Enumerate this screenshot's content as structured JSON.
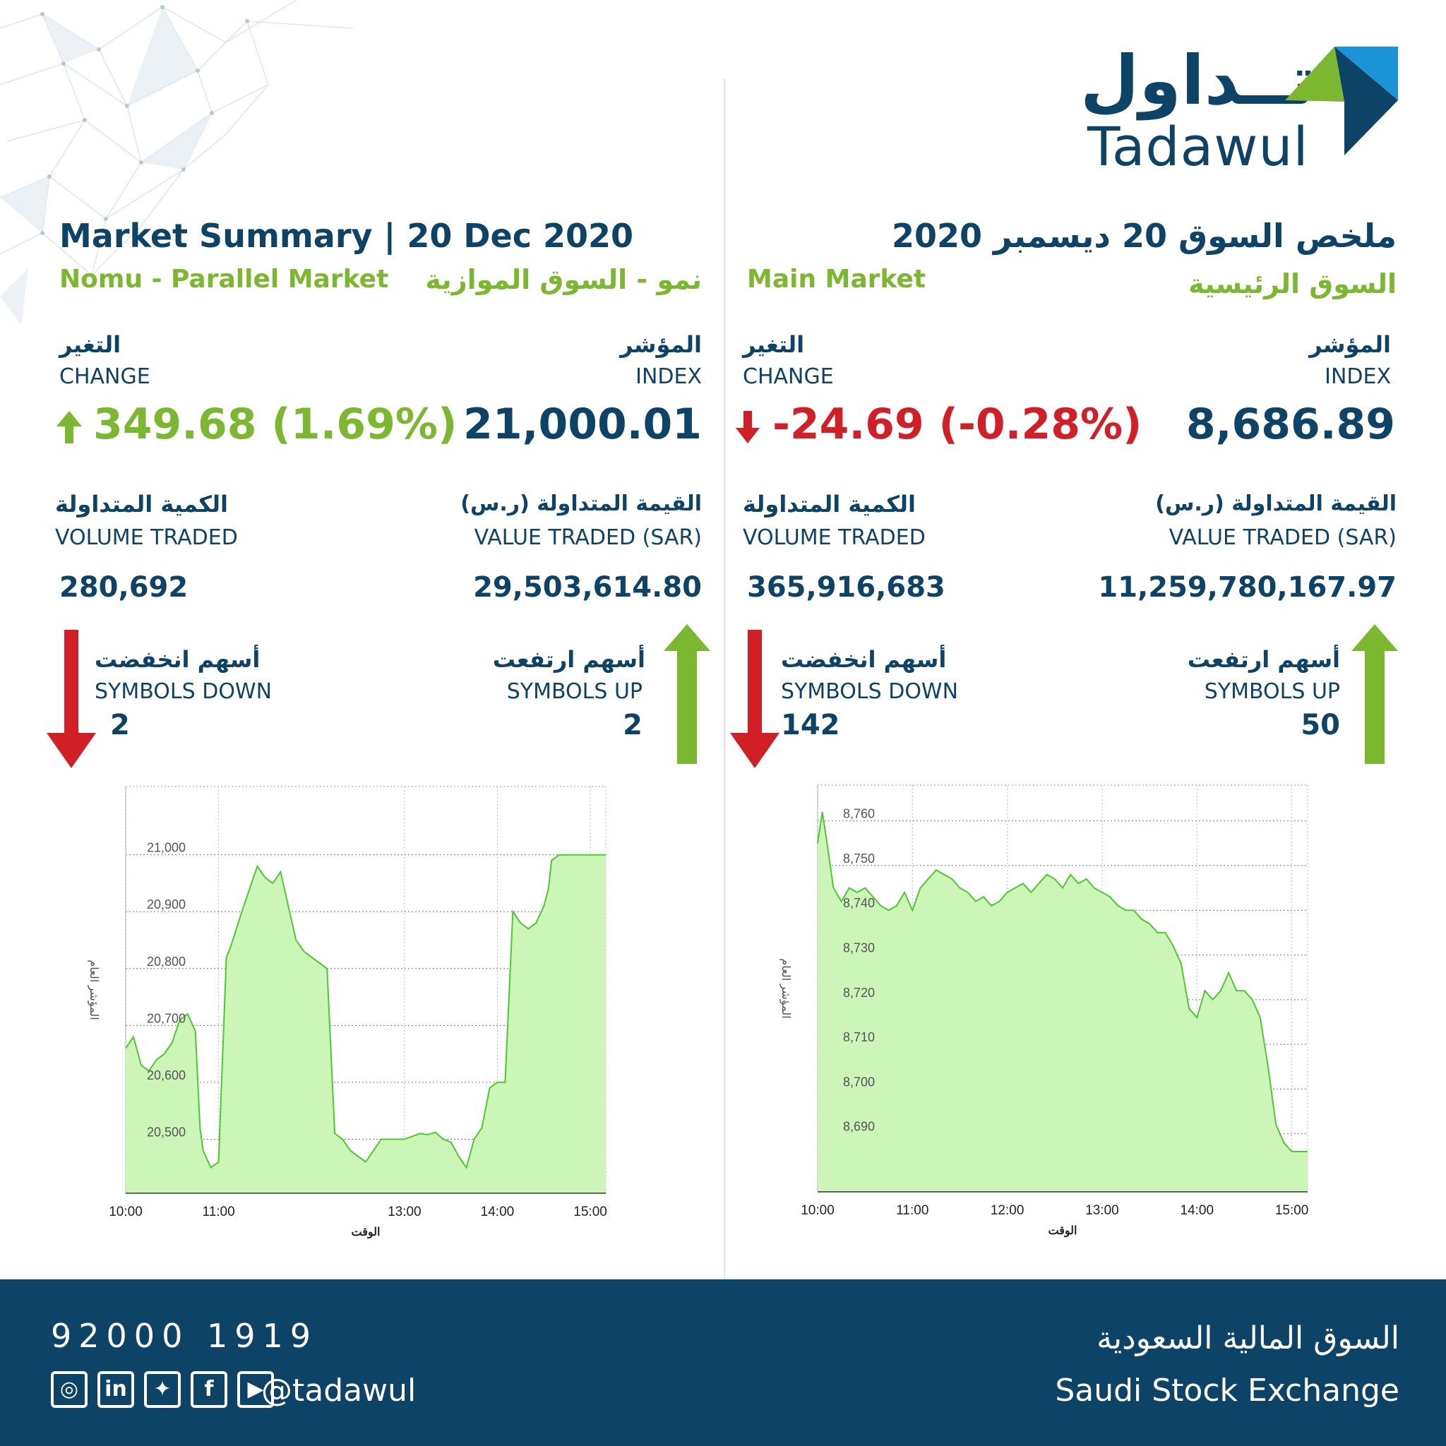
{
  "brand": {
    "arabic_name": "تــداول",
    "latin_name": "Tadawul"
  },
  "header": {
    "title_en": "Market Summary | 20 Dec 2020",
    "title_ar": "ملخص السوق 20 ديسمبر 2020"
  },
  "nomu": {
    "market_en": "Nomu - Parallel Market",
    "market_ar": "نمو - السوق الموازية",
    "index_ar": "المؤشر",
    "index_en": "INDEX",
    "index_value": "21,000.01",
    "change_ar": "التغير",
    "change_en": "CHANGE",
    "change_value": "349.68 (1.69%)",
    "value_ar": "القيمة المتداولة (ر.س)",
    "value_en": "VALUE TRADED (SAR)",
    "value_value": "29,503,614.80",
    "volume_ar": "الكمية المتداولة",
    "volume_en": "VOLUME TRADED",
    "volume_value": "280,692",
    "up_ar": "أسهم ارتفعت",
    "up_en": "SYMBOLS UP",
    "up_value": "2",
    "down_ar": "أسهم انخفضت",
    "down_en": "SYMBOLS DOWN",
    "down_value": "2"
  },
  "main": {
    "market_en": "Main Market",
    "market_ar": "السوق الرئيسية",
    "index_ar": "المؤشر",
    "index_en": "INDEX",
    "index_value": "8,686.89",
    "change_ar": "التغير",
    "change_en": "CHANGE",
    "change_value": "-24.69 (-0.28%)",
    "value_ar": "القيمة المتداولة (ر.س)",
    "value_en": "VALUE TRADED (SAR)",
    "value_value": "11,259,780,167.97",
    "volume_ar": "الكمية المتداولة",
    "volume_en": "VOLUME TRADED",
    "volume_value": "365,916,683",
    "up_ar": "أسهم ارتفعت",
    "up_en": "SYMBOLS UP",
    "up_value": "50",
    "down_ar": "أسهم انخفضت",
    "down_en": "SYMBOLS DOWN",
    "down_value": "142"
  },
  "footer": {
    "phone": "92000 1919",
    "handle": "@tadawul",
    "exchange_ar": "السوق المالية السعودية",
    "exchange_en": "Saudi Stock Exchange",
    "social_icons": [
      "instagram-icon",
      "linkedin-icon",
      "twitter-icon",
      "facebook-icon",
      "youtube-icon"
    ]
  },
  "colors": {
    "navy": "#0d4366",
    "green": "#7cb82f",
    "red": "#d21f26",
    "chart_fill": "#ccf5b8",
    "chart_line": "#4cc92e"
  },
  "chart_data": [
    {
      "type": "area",
      "name": "nomu-index-chart",
      "xlabel": "الوقت",
      "ylabel": "المؤشر العام",
      "x_ticks": [
        "10:00",
        "11:00",
        "13:00",
        "14:00",
        "15:00"
      ],
      "y_ticks": [
        20500,
        20600,
        20700,
        20800,
        20900,
        21000
      ],
      "y_tick_labels": [
        "20,500",
        "20,600",
        "20,700",
        "20,800",
        "20,900",
        "21,000"
      ],
      "ylim": [
        20405,
        21120
      ],
      "xlim": [
        "10:00",
        "15:10"
      ],
      "grid": true,
      "x": [
        "10:00",
        "10:05",
        "10:10",
        "10:15",
        "10:20",
        "10:25",
        "10:30",
        "10:35",
        "10:40",
        "10:45",
        "10:48",
        "10:50",
        "10:55",
        "11:00",
        "11:05",
        "11:08",
        "11:15",
        "11:25",
        "11:30",
        "11:35",
        "11:40",
        "11:45",
        "11:50",
        "11:55",
        "12:00",
        "12:05",
        "12:10",
        "12:15",
        "12:20",
        "12:25",
        "12:30",
        "12:35",
        "12:40",
        "12:45",
        "12:50",
        "13:00",
        "13:05",
        "13:10",
        "13:15",
        "13:20",
        "13:25",
        "13:30",
        "13:35",
        "13:40",
        "13:45",
        "13:50",
        "13:55",
        "14:00",
        "14:05",
        "14:10",
        "14:15",
        "14:20",
        "14:25",
        "14:30",
        "14:33",
        "14:35",
        "14:40",
        "14:45",
        "14:50",
        "14:55",
        "15:00",
        "15:10"
      ],
      "y": [
        20660,
        20680,
        20630,
        20620,
        20640,
        20650,
        20670,
        20710,
        20720,
        20690,
        20520,
        20480,
        20450,
        20460,
        20820,
        20840,
        20900,
        20980,
        20960,
        20950,
        20970,
        20910,
        20850,
        20830,
        20820,
        20810,
        20800,
        20510,
        20500,
        20480,
        20470,
        20460,
        20480,
        20500,
        20500,
        20500,
        20505,
        20510,
        20508,
        20512,
        20500,
        20495,
        20470,
        20450,
        20500,
        20520,
        20590,
        20600,
        20600,
        20900,
        20880,
        20870,
        20880,
        20910,
        20940,
        20990,
        21000,
        21000,
        21000,
        21000,
        21000,
        21000
      ]
    },
    {
      "type": "area",
      "name": "main-index-chart",
      "xlabel": "الوقت",
      "ylabel": "المؤشر العام",
      "x_ticks": [
        "10:00",
        "11:00",
        "12:00",
        "13:00",
        "14:00",
        "15:00"
      ],
      "y_ticks": [
        8690,
        8700,
        8710,
        8720,
        8730,
        8740,
        8750,
        8760
      ],
      "y_tick_labels": [
        "8,690",
        "8,700",
        "8,710",
        "8,720",
        "8,730",
        "8,740",
        "8,750",
        "8,760"
      ],
      "ylim": [
        8677,
        8768
      ],
      "xlim": [
        "10:00",
        "15:10"
      ],
      "grid": true,
      "x": [
        "10:00",
        "10:03",
        "10:06",
        "10:10",
        "10:15",
        "10:20",
        "10:25",
        "10:30",
        "10:35",
        "10:40",
        "10:45",
        "10:50",
        "10:55",
        "11:00",
        "11:05",
        "11:10",
        "11:15",
        "11:20",
        "11:25",
        "11:30",
        "11:35",
        "11:40",
        "11:45",
        "11:50",
        "11:55",
        "12:00",
        "12:05",
        "12:10",
        "12:15",
        "12:20",
        "12:25",
        "12:30",
        "12:35",
        "12:40",
        "12:45",
        "12:50",
        "12:55",
        "13:00",
        "13:05",
        "13:10",
        "13:15",
        "13:20",
        "13:25",
        "13:30",
        "13:35",
        "13:40",
        "13:45",
        "13:50",
        "13:55",
        "14:00",
        "14:05",
        "14:10",
        "14:15",
        "14:20",
        "14:25",
        "14:30",
        "14:35",
        "14:40",
        "14:45",
        "14:50",
        "14:55",
        "15:00",
        "15:05",
        "15:10"
      ],
      "y": [
        8755,
        8762,
        8755,
        8745,
        8742,
        8745,
        8744,
        8745,
        8743,
        8741,
        8740,
        8741,
        8744,
        8740,
        8745,
        8747,
        8749,
        8748,
        8747,
        8745,
        8744,
        8742,
        8743,
        8741,
        8742,
        8744,
        8745,
        8746,
        8744,
        8746,
        8748,
        8747,
        8745,
        8748,
        8746,
        8747,
        8745,
        8744,
        8743,
        8741,
        8740,
        8740,
        8738,
        8737,
        8735,
        8735,
        8732,
        8728,
        8718,
        8716,
        8722,
        8720,
        8722,
        8726,
        8722,
        8722,
        8720,
        8716,
        8705,
        8692,
        8688,
        8686,
        8686,
        8686
      ]
    }
  ]
}
